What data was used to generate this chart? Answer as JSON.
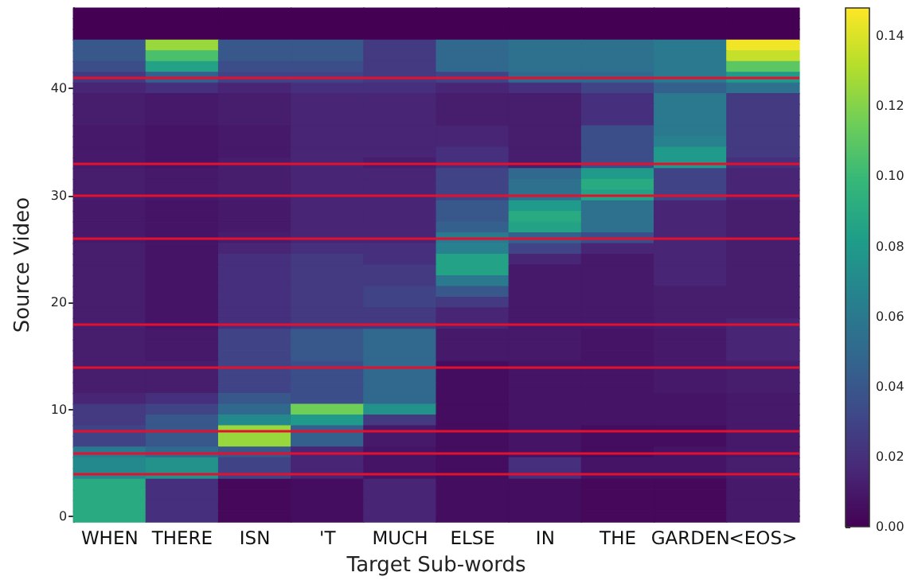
{
  "chart_data": {
    "type": "heatmap",
    "xlabel": "Target Sub-words",
    "ylabel": "Source Video",
    "categories": [
      "WHEN",
      "THERE",
      "ISN",
      "'T",
      "MUCH",
      "ELSE",
      "IN",
      "THE",
      "GARDEN",
      "<EOS>"
    ],
    "ylim": [
      -0.5,
      47.5
    ],
    "yticks": [
      0,
      10,
      20,
      30,
      40
    ],
    "clim": [
      0,
      0.148
    ],
    "cticks": [
      {
        "value": 0,
        "label": "0.00"
      },
      {
        "value": 0.02,
        "label": "0.02"
      },
      {
        "value": 0.04,
        "label": "0.04"
      },
      {
        "value": 0.06,
        "label": "0.06"
      },
      {
        "value": 0.08,
        "label": "0.08"
      },
      {
        "value": 0.1,
        "label": "0.10"
      },
      {
        "value": 0.12,
        "label": "0.12"
      },
      {
        "value": 0.14,
        "label": "0.14"
      }
    ],
    "ref_lines": [
      {
        "axis": "y",
        "value": 4,
        "color": "#e3102e"
      },
      {
        "axis": "y",
        "value": 6,
        "color": "#e3102e"
      },
      {
        "axis": "y",
        "value": 8,
        "color": "#e3102e"
      },
      {
        "axis": "y",
        "value": 14,
        "color": "#e3102e"
      },
      {
        "axis": "y",
        "value": 18,
        "color": "#e3102e"
      },
      {
        "axis": "y",
        "value": 26,
        "color": "#e3102e"
      },
      {
        "axis": "y",
        "value": 30,
        "color": "#e3102e"
      },
      {
        "axis": "y",
        "value": 33,
        "color": "#e3102e"
      },
      {
        "axis": "y",
        "value": 41,
        "color": "#e3102e"
      }
    ],
    "cells": [
      [
        0,
        0,
        0,
        0,
        0,
        0,
        0,
        0,
        0,
        0
      ],
      [
        0,
        0,
        0,
        0,
        0,
        0,
        0,
        0,
        0,
        0
      ],
      [
        0,
        0,
        0,
        0,
        0,
        0,
        0,
        0,
        0,
        0
      ],
      [
        0.04,
        0.125,
        0.04,
        0.04,
        0.025,
        0.05,
        0.055,
        0.055,
        0.06,
        0.145
      ],
      [
        0.04,
        0.105,
        0.04,
        0.04,
        0.025,
        0.05,
        0.055,
        0.055,
        0.06,
        0.135
      ],
      [
        0.035,
        0.085,
        0.035,
        0.035,
        0.025,
        0.05,
        0.055,
        0.055,
        0.06,
        0.11
      ],
      [
        0.025,
        0.045,
        0.03,
        0.03,
        0.025,
        0.03,
        0.05,
        0.05,
        0.06,
        0.08
      ],
      [
        0.015,
        0.02,
        0.015,
        0.02,
        0.02,
        0.015,
        0.02,
        0.03,
        0.045,
        0.055
      ],
      [
        0.012,
        0.01,
        0.012,
        0.015,
        0.015,
        0.012,
        0.012,
        0.02,
        0.06,
        0.025
      ],
      [
        0.012,
        0.01,
        0.012,
        0.015,
        0.015,
        0.012,
        0.012,
        0.02,
        0.06,
        0.025
      ],
      [
        0.012,
        0.01,
        0.012,
        0.015,
        0.015,
        0.012,
        0.012,
        0.02,
        0.06,
        0.025
      ],
      [
        0.01,
        0.008,
        0.01,
        0.015,
        0.015,
        0.015,
        0.012,
        0.035,
        0.06,
        0.025
      ],
      [
        0.01,
        0.008,
        0.01,
        0.015,
        0.015,
        0.015,
        0.012,
        0.035,
        0.065,
        0.025
      ],
      [
        0.01,
        0.008,
        0.01,
        0.015,
        0.015,
        0.02,
        0.012,
        0.035,
        0.08,
        0.025
      ],
      [
        0.01,
        0.008,
        0.012,
        0.015,
        0.012,
        0.02,
        0.012,
        0.035,
        0.08,
        0.02
      ],
      [
        0.012,
        0.01,
        0.012,
        0.015,
        0.015,
        0.03,
        0.05,
        0.08,
        0.03,
        0.015
      ],
      [
        0.012,
        0.01,
        0.012,
        0.015,
        0.015,
        0.03,
        0.055,
        0.09,
        0.03,
        0.015
      ],
      [
        0.012,
        0.01,
        0.012,
        0.015,
        0.015,
        0.03,
        0.055,
        0.085,
        0.03,
        0.015
      ],
      [
        0.01,
        0.008,
        0.01,
        0.015,
        0.015,
        0.04,
        0.08,
        0.055,
        0.015,
        0.012
      ],
      [
        0.01,
        0.008,
        0.01,
        0.015,
        0.015,
        0.04,
        0.09,
        0.055,
        0.015,
        0.012
      ],
      [
        0.01,
        0.008,
        0.01,
        0.015,
        0.015,
        0.045,
        0.085,
        0.055,
        0.015,
        0.012
      ],
      [
        0.01,
        0.008,
        0.012,
        0.015,
        0.015,
        0.06,
        0.045,
        0.035,
        0.015,
        0.012
      ],
      [
        0.012,
        0.008,
        0.015,
        0.02,
        0.02,
        0.065,
        0.03,
        0.015,
        0.015,
        0.012
      ],
      [
        0.012,
        0.008,
        0.02,
        0.025,
        0.02,
        0.085,
        0.015,
        0.01,
        0.015,
        0.012
      ],
      [
        0.012,
        0.008,
        0.02,
        0.025,
        0.025,
        0.085,
        0.01,
        0.01,
        0.015,
        0.012
      ],
      [
        0.012,
        0.008,
        0.02,
        0.025,
        0.025,
        0.06,
        0.01,
        0.01,
        0.015,
        0.012
      ],
      [
        0.012,
        0.008,
        0.02,
        0.025,
        0.03,
        0.04,
        0.01,
        0.01,
        0.012,
        0.012
      ],
      [
        0.012,
        0.008,
        0.02,
        0.025,
        0.03,
        0.025,
        0.01,
        0.01,
        0.012,
        0.012
      ],
      [
        0.012,
        0.008,
        0.02,
        0.025,
        0.025,
        0.015,
        0.01,
        0.01,
        0.012,
        0.012
      ],
      [
        0.012,
        0.008,
        0.02,
        0.025,
        0.025,
        0.015,
        0.01,
        0.01,
        0.012,
        0.015
      ],
      [
        0.012,
        0.01,
        0.03,
        0.04,
        0.05,
        0.01,
        0.01,
        0.008,
        0.01,
        0.015
      ],
      [
        0.012,
        0.01,
        0.03,
        0.04,
        0.05,
        0.01,
        0.01,
        0.008,
        0.01,
        0.015
      ],
      [
        0.012,
        0.01,
        0.03,
        0.04,
        0.05,
        0.01,
        0.01,
        0.008,
        0.01,
        0.015
      ],
      [
        0.012,
        0.012,
        0.03,
        0.035,
        0.05,
        0.005,
        0.008,
        0.008,
        0.01,
        0.012
      ],
      [
        0.012,
        0.012,
        0.03,
        0.035,
        0.05,
        0.005,
        0.008,
        0.008,
        0.01,
        0.012
      ],
      [
        0.012,
        0.012,
        0.03,
        0.035,
        0.05,
        0.005,
        0.008,
        0.008,
        0.01,
        0.012
      ],
      [
        0.015,
        0.02,
        0.04,
        0.035,
        0.05,
        0.005,
        0.008,
        0.008,
        0.008,
        0.01
      ],
      [
        0.025,
        0.03,
        0.05,
        0.115,
        0.075,
        0.005,
        0.008,
        0.008,
        0.008,
        0.01
      ],
      [
        0.025,
        0.04,
        0.07,
        0.08,
        0.025,
        0.005,
        0.008,
        0.008,
        0.008,
        0.01
      ],
      [
        0.03,
        0.04,
        0.125,
        0.045,
        0.01,
        0.005,
        0.008,
        0.005,
        0.005,
        0.01
      ],
      [
        0.03,
        0.04,
        0.125,
        0.045,
        0.01,
        0.005,
        0.008,
        0.005,
        0.005,
        0.01
      ],
      [
        0.06,
        0.05,
        0.04,
        0.015,
        0.008,
        0.005,
        0.008,
        0.005,
        0.008,
        0.01
      ],
      [
        0.07,
        0.075,
        0.03,
        0.015,
        0.008,
        0.005,
        0.02,
        0.008,
        0.008,
        0.012
      ],
      [
        0.07,
        0.075,
        0.03,
        0.015,
        0.008,
        0.005,
        0.02,
        0.008,
        0.008,
        0.012
      ],
      [
        0.09,
        0.02,
        0.003,
        0.005,
        0.015,
        0.005,
        0.005,
        0.003,
        0.003,
        0.01
      ],
      [
        0.09,
        0.02,
        0.003,
        0.005,
        0.015,
        0.005,
        0.005,
        0.003,
        0.003,
        0.01
      ],
      [
        0.09,
        0.02,
        0.003,
        0.005,
        0.015,
        0.005,
        0.005,
        0.003,
        0.003,
        0.01
      ],
      [
        0.09,
        0.02,
        0.003,
        0.005,
        0.015,
        0.005,
        0.005,
        0.003,
        0.003,
        0.01
      ]
    ]
  }
}
